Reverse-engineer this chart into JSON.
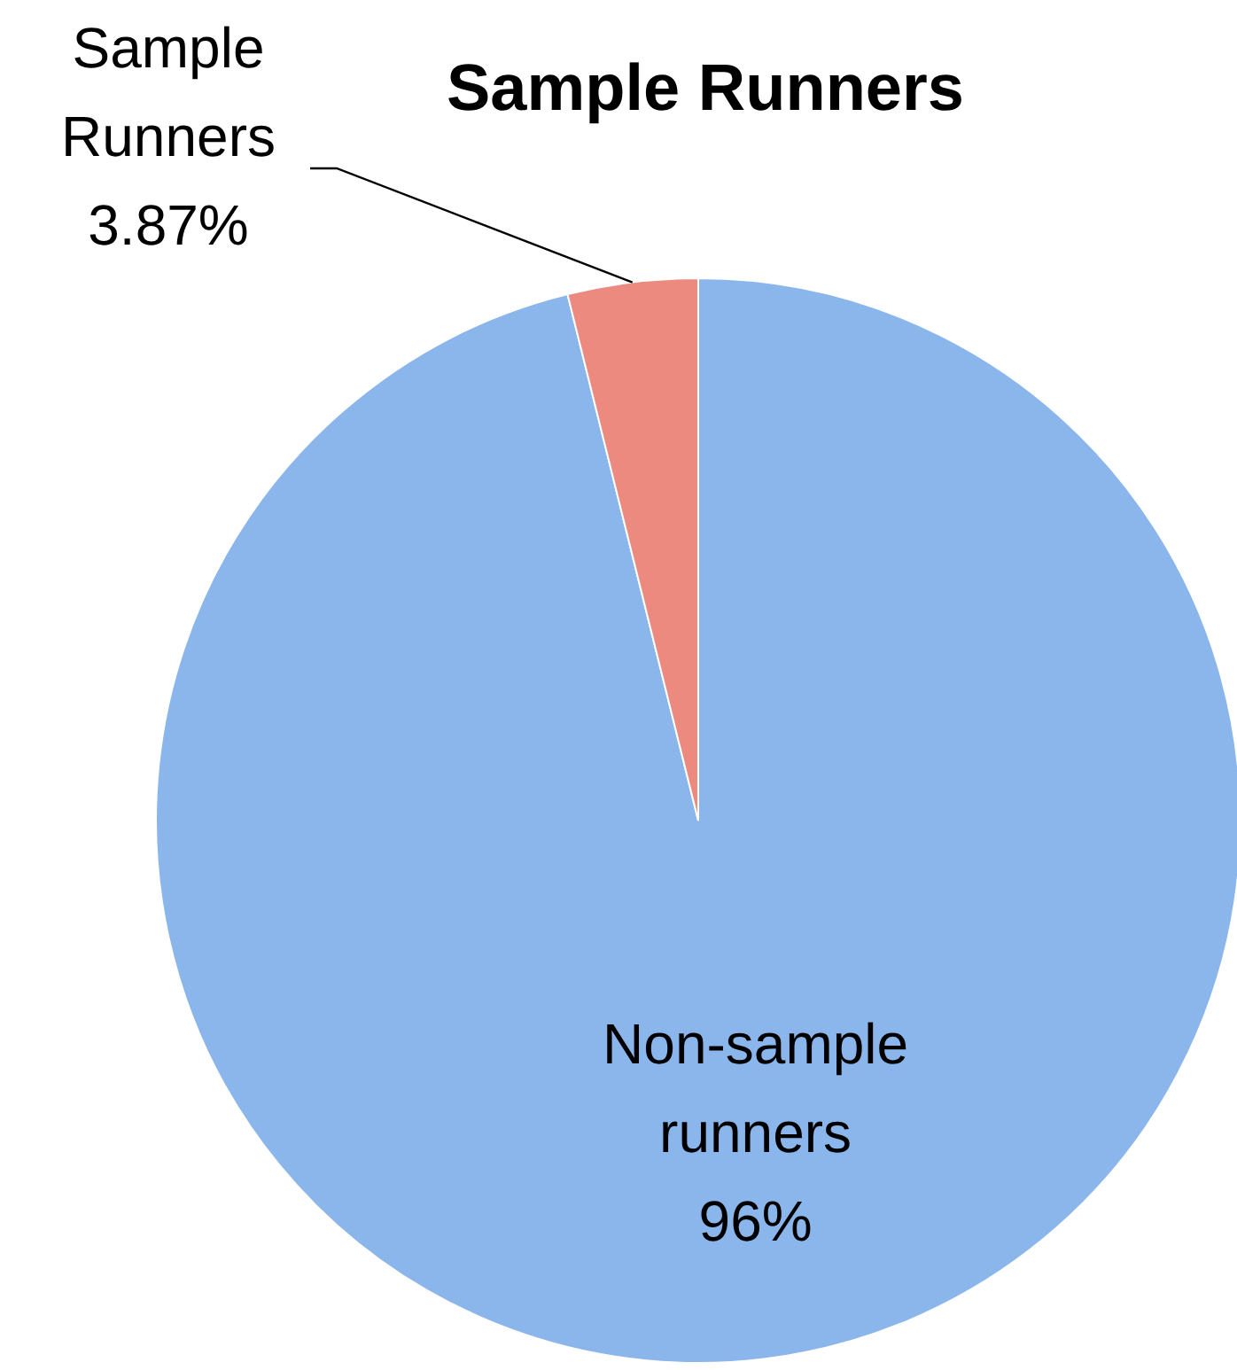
{
  "chart_data": {
    "type": "pie",
    "title": "Sample Runners",
    "categories": [
      "Non-sample runners",
      "Sample Runners"
    ],
    "values": [
      96,
      3.87
    ],
    "colors": [
      "#8bb6ec",
      "#ec8a80"
    ],
    "value_labels": [
      "96%",
      "3.87%"
    ]
  }
}
